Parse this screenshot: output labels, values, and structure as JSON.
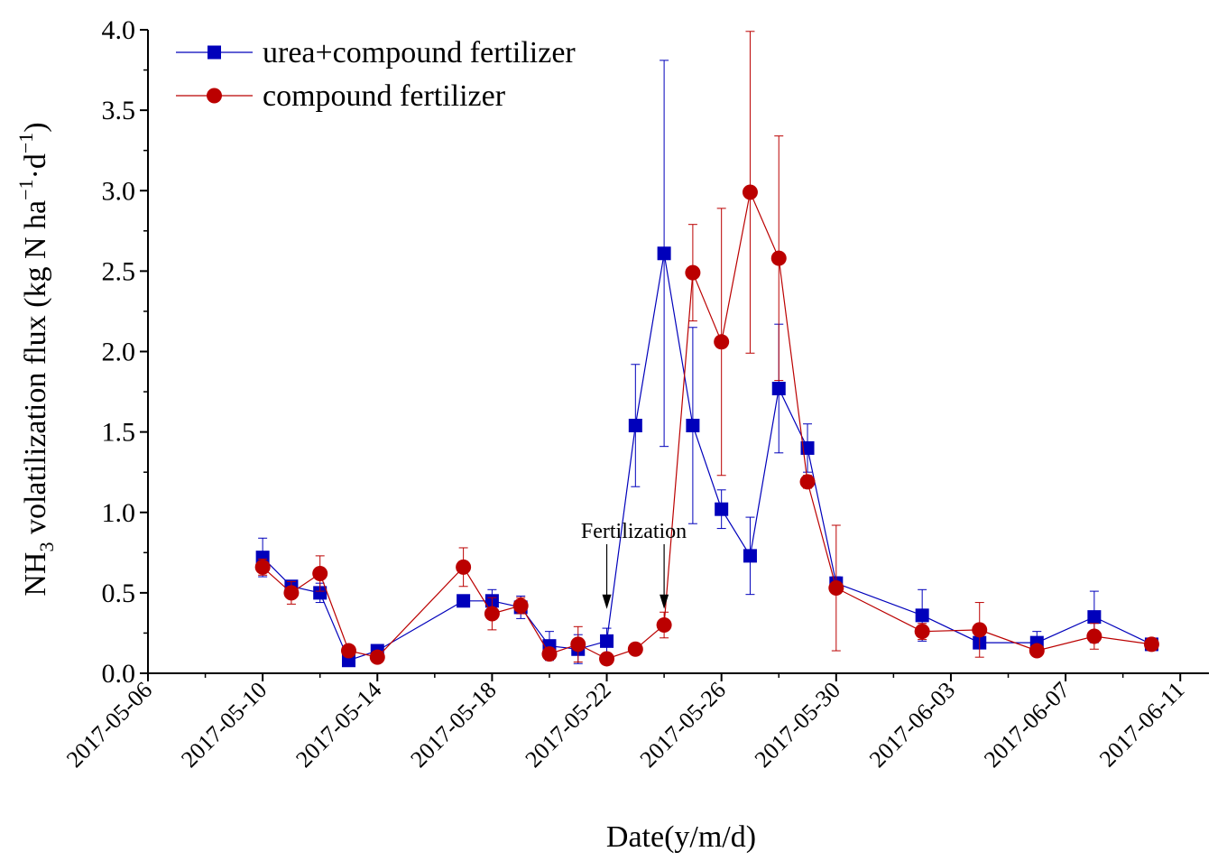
{
  "chart_data": {
    "type": "line",
    "title": "",
    "xlabel": "Date(y/m/d)",
    "ylabel": {
      "prefix": "NH",
      "sub": "3",
      "middle": " volatilization flux (kg N ha",
      "sup1": "−1",
      "mid2": "·d",
      "sup2": "−1",
      "suffix": ")"
    },
    "ylim": [
      0,
      4.0
    ],
    "yticks": [
      "0.0",
      "0.5",
      "1.0",
      "1.5",
      "2.0",
      "2.5",
      "3.0",
      "3.5",
      "4.0"
    ],
    "xlim": [
      "2017-05-06",
      "2017-06-12"
    ],
    "xticks": [
      "2017-05-06",
      "2017-05-10",
      "2017-05-14",
      "2017-05-18",
      "2017-05-22",
      "2017-05-26",
      "2017-05-30",
      "2017-06-03",
      "2017-06-07",
      "2017-06-11"
    ],
    "legend_position": "top-left",
    "series": [
      {
        "name": "urea+compound fertilizer",
        "color": "#0000bb",
        "marker": "square",
        "dates": [
          "2017-05-10",
          "2017-05-11",
          "2017-05-12",
          "2017-05-13",
          "2017-05-14",
          "2017-05-17",
          "2017-05-18",
          "2017-05-19",
          "2017-05-20",
          "2017-05-21",
          "2017-05-22",
          "2017-05-23",
          "2017-05-24",
          "2017-05-25",
          "2017-05-26",
          "2017-05-27",
          "2017-05-28",
          "2017-05-29",
          "2017-05-30",
          "2017-06-02",
          "2017-06-04",
          "2017-06-06",
          "2017-06-08",
          "2017-06-10"
        ],
        "values": [
          0.72,
          0.54,
          0.5,
          0.08,
          0.14,
          0.45,
          0.45,
          0.41,
          0.17,
          0.15,
          0.2,
          1.54,
          2.61,
          1.54,
          1.02,
          0.73,
          1.77,
          1.4,
          0.56,
          0.36,
          0.19,
          0.19,
          0.35,
          0.18
        ],
        "errors": [
          0.12,
          0.03,
          0.06,
          0.02,
          0.03,
          0.02,
          0.07,
          0.07,
          0.09,
          0.09,
          0.08,
          0.38,
          1.2,
          0.61,
          0.12,
          0.24,
          0.4,
          0.15,
          0.04,
          0.16,
          0.03,
          0.07,
          0.16,
          0.02
        ]
      },
      {
        "name": "compound fertilizer",
        "color": "#bb0000",
        "marker": "circle",
        "dates": [
          "2017-05-10",
          "2017-05-11",
          "2017-05-12",
          "2017-05-13",
          "2017-05-14",
          "2017-05-17",
          "2017-05-18",
          "2017-05-19",
          "2017-05-20",
          "2017-05-21",
          "2017-05-22",
          "2017-05-23",
          "2017-05-24",
          "2017-05-25",
          "2017-05-26",
          "2017-05-27",
          "2017-05-28",
          "2017-05-29",
          "2017-05-30",
          "2017-06-02",
          "2017-06-04",
          "2017-06-06",
          "2017-06-08",
          "2017-06-10"
        ],
        "values": [
          0.66,
          0.5,
          0.62,
          0.14,
          0.1,
          0.66,
          0.37,
          0.42,
          0.12,
          0.18,
          0.09,
          0.15,
          0.3,
          2.49,
          2.06,
          2.99,
          2.58,
          1.19,
          0.53,
          0.26,
          0.27,
          0.14,
          0.23,
          0.18
        ],
        "errors": [
          0.05,
          0.07,
          0.11,
          0.02,
          0.02,
          0.12,
          0.1,
          0.05,
          0.03,
          0.11,
          0.02,
          0.02,
          0.08,
          0.3,
          0.83,
          1.0,
          0.76,
          0.04,
          0.39,
          0.05,
          0.17,
          0.02,
          0.08,
          0.02
        ]
      }
    ],
    "annotations": {
      "text": "Fertilization",
      "arrow_dates": [
        "2017-05-22",
        "2017-05-24"
      ],
      "arrow_tip_value": 0.4
    }
  }
}
